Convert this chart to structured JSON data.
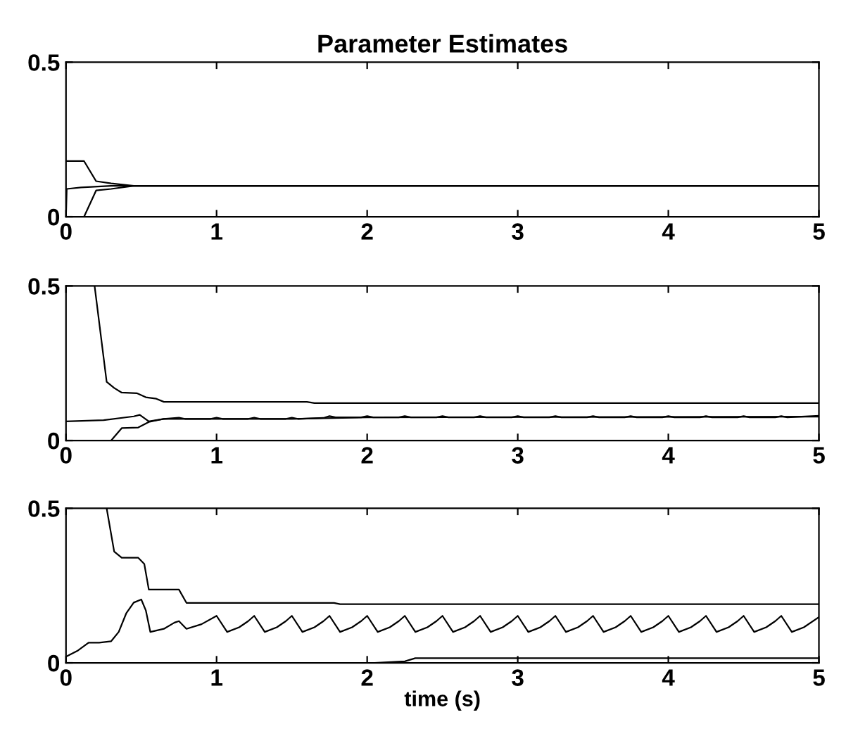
{
  "chart_data": [
    {
      "type": "line",
      "title": "Parameter Estimates",
      "xlim": [
        0,
        5
      ],
      "ylim": [
        0,
        0.5
      ],
      "xticks": [
        0,
        1,
        2,
        3,
        4,
        5
      ],
      "yticks": [
        0,
        0.5
      ],
      "series": [
        {
          "color": "#000000",
          "x": [
            0,
            0.12,
            0.2,
            0.3,
            0.45,
            5
          ],
          "values": [
            0.18,
            0.18,
            0.115,
            0.108,
            0.1,
            0.1
          ]
        },
        {
          "color": "#000000",
          "x": [
            0,
            0.005,
            0.1,
            0.3,
            5
          ],
          "values": [
            0,
            0.09,
            0.095,
            0.1,
            0.1
          ]
        },
        {
          "color": "#000000",
          "x": [
            0,
            0.12,
            0.2,
            0.3,
            0.45,
            5
          ],
          "values": [
            0,
            0,
            0.085,
            0.09,
            0.1,
            0.1
          ]
        }
      ]
    },
    {
      "type": "line",
      "xlim": [
        0,
        5
      ],
      "ylim": [
        0,
        0.5
      ],
      "xticks": [
        0,
        1,
        2,
        3,
        4,
        5
      ],
      "yticks": [
        0,
        0.5
      ],
      "series": [
        {
          "color": "#000000",
          "x": [
            0.19,
            0.27,
            0.32,
            0.37,
            0.47,
            0.53,
            0.6,
            0.65,
            1.6,
            1.65,
            5
          ],
          "values": [
            0.5,
            0.19,
            0.17,
            0.155,
            0.153,
            0.14,
            0.135,
            0.125,
            0.125,
            0.121,
            0.121
          ]
        },
        {
          "color": "#000000",
          "x": [
            0,
            0.25,
            0.45,
            0.49,
            0.55,
            0.65,
            0.75,
            0.79,
            0.96,
            1.0,
            1.04,
            1.21,
            1.25,
            1.29,
            1.46,
            1.5,
            1.54,
            1.71,
            1.75,
            1.79,
            1.96,
            2.0,
            2.04,
            2.21,
            2.25,
            2.29,
            2.46,
            2.5,
            2.54,
            2.71,
            2.75,
            2.79,
            2.96,
            3.0,
            3.04,
            3.21,
            3.25,
            3.29,
            3.46,
            3.5,
            3.54,
            3.71,
            3.75,
            3.79,
            3.96,
            4.0,
            4.04,
            4.21,
            4.25,
            4.29,
            4.46,
            4.5,
            4.54,
            4.71,
            4.75,
            4.79,
            5
          ],
          "values": [
            0.062,
            0.066,
            0.078,
            0.083,
            0.062,
            0.07,
            0.074,
            0.07,
            0.07,
            0.074,
            0.07,
            0.07,
            0.074,
            0.07,
            0.07,
            0.074,
            0.07,
            0.073,
            0.079,
            0.075,
            0.075,
            0.079,
            0.075,
            0.075,
            0.079,
            0.075,
            0.075,
            0.079,
            0.075,
            0.075,
            0.079,
            0.075,
            0.075,
            0.079,
            0.075,
            0.075,
            0.079,
            0.075,
            0.075,
            0.079,
            0.075,
            0.075,
            0.079,
            0.075,
            0.075,
            0.079,
            0.075,
            0.075,
            0.079,
            0.075,
            0.075,
            0.079,
            0.075,
            0.075,
            0.079,
            0.075,
            0.08
          ]
        },
        {
          "color": "#000000",
          "x": [
            0,
            0.3,
            0.37,
            0.48,
            0.55,
            0.65,
            1.5,
            2.0,
            5
          ],
          "values": [
            0,
            0,
            0.04,
            0.042,
            0.06,
            0.07,
            0.07,
            0.075,
            0.077
          ]
        }
      ]
    },
    {
      "type": "line",
      "xlabel": "time (s)",
      "xlim": [
        0,
        5
      ],
      "ylim": [
        0,
        0.5
      ],
      "xticks": [
        0,
        1,
        2,
        3,
        4,
        5
      ],
      "yticks": [
        0,
        0.5
      ],
      "series": [
        {
          "color": "#000000",
          "x": [
            0.27,
            0.32,
            0.37,
            0.48,
            0.52,
            0.55,
            0.75,
            0.8,
            1.78,
            1.82,
            5
          ],
          "values": [
            0.5,
            0.36,
            0.34,
            0.34,
            0.32,
            0.237,
            0.237,
            0.194,
            0.194,
            0.19,
            0.19
          ]
        },
        {
          "color": "#000000",
          "x": [
            0,
            0.08,
            0.15,
            0.22,
            0.3,
            0.35,
            0.4,
            0.45,
            0.5,
            0.53,
            0.56,
            0.65,
            0.72,
            0.75,
            0.8,
            0.9,
            1.0,
            1.07,
            1.15,
            1.21,
            1.25,
            1.32,
            1.4,
            1.46,
            1.5,
            1.57,
            1.65,
            1.71,
            1.75,
            1.82,
            1.9,
            1.96,
            2.0,
            2.07,
            2.15,
            2.21,
            2.25,
            2.32,
            2.4,
            2.46,
            2.5,
            2.57,
            2.65,
            2.71,
            2.75,
            2.82,
            2.9,
            2.96,
            3.0,
            3.07,
            3.15,
            3.21,
            3.25,
            3.32,
            3.4,
            3.46,
            3.5,
            3.57,
            3.65,
            3.71,
            3.75,
            3.82,
            3.9,
            3.96,
            4.0,
            4.07,
            4.15,
            4.21,
            4.25,
            4.32,
            4.4,
            4.46,
            4.5,
            4.57,
            4.65,
            4.71,
            4.75,
            4.82,
            4.9,
            5.0
          ],
          "values": [
            0.02,
            0.04,
            0.065,
            0.065,
            0.07,
            0.1,
            0.16,
            0.195,
            0.205,
            0.17,
            0.1,
            0.11,
            0.13,
            0.135,
            0.11,
            0.125,
            0.152,
            0.1,
            0.115,
            0.135,
            0.152,
            0.1,
            0.115,
            0.135,
            0.152,
            0.1,
            0.115,
            0.135,
            0.152,
            0.1,
            0.115,
            0.135,
            0.152,
            0.1,
            0.115,
            0.135,
            0.152,
            0.1,
            0.115,
            0.135,
            0.152,
            0.1,
            0.115,
            0.135,
            0.152,
            0.1,
            0.115,
            0.135,
            0.152,
            0.1,
            0.115,
            0.135,
            0.152,
            0.1,
            0.115,
            0.135,
            0.152,
            0.1,
            0.115,
            0.135,
            0.152,
            0.1,
            0.115,
            0.135,
            0.152,
            0.1,
            0.115,
            0.135,
            0.152,
            0.1,
            0.115,
            0.135,
            0.152,
            0.1,
            0.115,
            0.135,
            0.152,
            0.1,
            0.115,
            0.148
          ]
        },
        {
          "color": "#000000",
          "x": [
            0,
            2.05,
            2.25,
            2.32,
            5
          ],
          "values": [
            0,
            0,
            0.005,
            0.015,
            0.015
          ]
        }
      ]
    }
  ]
}
